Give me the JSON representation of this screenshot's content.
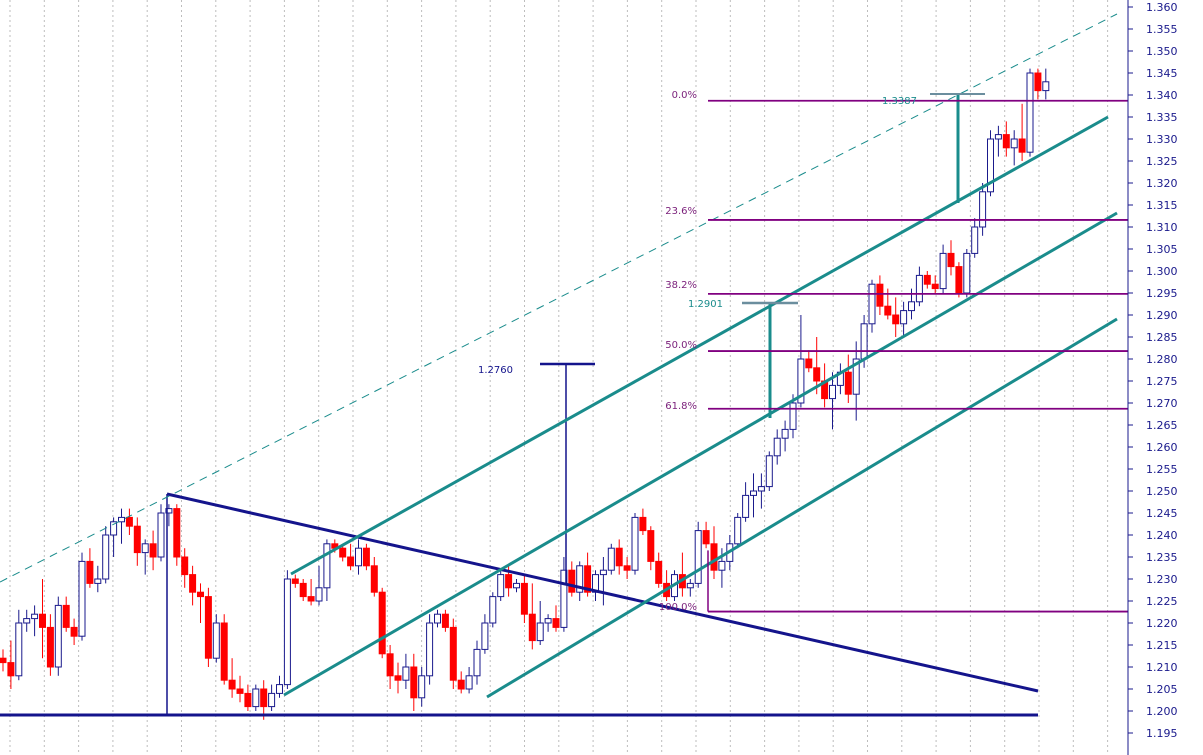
{
  "chart_data": {
    "type": "candlestick",
    "ylim": [
      1.195,
      1.36
    ],
    "y_ticks": [
      "1.195",
      "1.200",
      "1.205",
      "1.210",
      "1.215",
      "1.220",
      "1.225",
      "1.230",
      "1.235",
      "1.240",
      "1.245",
      "1.250",
      "1.255",
      "1.260",
      "1.265",
      "1.270",
      "1.275",
      "1.280",
      "1.285",
      "1.290",
      "1.295",
      "1.300",
      "1.305",
      "1.310",
      "1.315",
      "1.320",
      "1.325",
      "1.330",
      "1.335",
      "1.340",
      "1.345",
      "1.350",
      "1.355",
      "1.360"
    ],
    "grid": "vertical dotted",
    "colors": {
      "up": "#ffffff",
      "down": "#ff0000",
      "up_outline": "#1a1a8c",
      "fib": "#800080",
      "channel": "#1a8c8c",
      "trend": "#14148c",
      "tick": "#1a1a8c"
    },
    "candles": [
      [
        1.212,
        1.214,
        1.209,
        1.211
      ],
      [
        1.211,
        1.216,
        1.205,
        1.208
      ],
      [
        1.208,
        1.223,
        1.207,
        1.22
      ],
      [
        1.22,
        1.223,
        1.218,
        1.221
      ],
      [
        1.221,
        1.224,
        1.217,
        1.222
      ],
      [
        1.222,
        1.23,
        1.212,
        1.219
      ],
      [
        1.219,
        1.222,
        1.208,
        1.21
      ],
      [
        1.21,
        1.226,
        1.208,
        1.224
      ],
      [
        1.224,
        1.226,
        1.218,
        1.219
      ],
      [
        1.219,
        1.221,
        1.215,
        1.217
      ],
      [
        1.217,
        1.236,
        1.216,
        1.234
      ],
      [
        1.234,
        1.237,
        1.228,
        1.229
      ],
      [
        1.229,
        1.233,
        1.227,
        1.23
      ],
      [
        1.23,
        1.242,
        1.229,
        1.24
      ],
      [
        1.24,
        1.244,
        1.235,
        1.243
      ],
      [
        1.243,
        1.246,
        1.238,
        1.244
      ],
      [
        1.244,
        1.246,
        1.24,
        1.242
      ],
      [
        1.242,
        1.244,
        1.233,
        1.236
      ],
      [
        1.236,
        1.239,
        1.231,
        1.238
      ],
      [
        1.238,
        1.241,
        1.232,
        1.235
      ],
      [
        1.235,
        1.247,
        1.234,
        1.245
      ],
      [
        1.245,
        1.247,
        1.242,
        1.246
      ],
      [
        1.246,
        1.247,
        1.233,
        1.235
      ],
      [
        1.235,
        1.237,
        1.228,
        1.231
      ],
      [
        1.231,
        1.233,
        1.224,
        1.227
      ],
      [
        1.227,
        1.229,
        1.22,
        1.226
      ],
      [
        1.226,
        1.228,
        1.21,
        1.212
      ],
      [
        1.212,
        1.222,
        1.211,
        1.22
      ],
      [
        1.22,
        1.222,
        1.206,
        1.207
      ],
      [
        1.207,
        1.212,
        1.203,
        1.205
      ],
      [
        1.205,
        1.208,
        1.202,
        1.204
      ],
      [
        1.204,
        1.206,
        1.2,
        1.201
      ],
      [
        1.201,
        1.206,
        1.2,
        1.205
      ],
      [
        1.205,
        1.207,
        1.198,
        1.201
      ],
      [
        1.201,
        1.206,
        1.2,
        1.204
      ],
      [
        1.204,
        1.208,
        1.203,
        1.206
      ],
      [
        1.206,
        1.232,
        1.205,
        1.23
      ],
      [
        1.23,
        1.231,
        1.228,
        1.229
      ],
      [
        1.229,
        1.23,
        1.225,
        1.226
      ],
      [
        1.226,
        1.23,
        1.224,
        1.225
      ],
      [
        1.225,
        1.233,
        1.224,
        1.228
      ],
      [
        1.228,
        1.239,
        1.225,
        1.238
      ],
      [
        1.238,
        1.239,
        1.236,
        1.237
      ],
      [
        1.237,
        1.238,
        1.234,
        1.235
      ],
      [
        1.235,
        1.238,
        1.232,
        1.233
      ],
      [
        1.233,
        1.239,
        1.231,
        1.237
      ],
      [
        1.237,
        1.238,
        1.232,
        1.233
      ],
      [
        1.233,
        1.235,
        1.226,
        1.227
      ],
      [
        1.227,
        1.228,
        1.212,
        1.213
      ],
      [
        1.213,
        1.215,
        1.205,
        1.208
      ],
      [
        1.208,
        1.211,
        1.204,
        1.207
      ],
      [
        1.207,
        1.213,
        1.205,
        1.21
      ],
      [
        1.21,
        1.213,
        1.2,
        1.203
      ],
      [
        1.203,
        1.21,
        1.201,
        1.208
      ],
      [
        1.208,
        1.222,
        1.206,
        1.22
      ],
      [
        1.22,
        1.223,
        1.219,
        1.222
      ],
      [
        1.222,
        1.223,
        1.218,
        1.219
      ],
      [
        1.219,
        1.221,
        1.205,
        1.207
      ],
      [
        1.207,
        1.209,
        1.204,
        1.205
      ],
      [
        1.205,
        1.21,
        1.204,
        1.208
      ],
      [
        1.208,
        1.216,
        1.206,
        1.214
      ],
      [
        1.214,
        1.222,
        1.213,
        1.22
      ],
      [
        1.22,
        1.227,
        1.219,
        1.226
      ],
      [
        1.226,
        1.232,
        1.225,
        1.231
      ],
      [
        1.231,
        1.233,
        1.226,
        1.228
      ],
      [
        1.228,
        1.23,
        1.227,
        1.229
      ],
      [
        1.229,
        1.231,
        1.22,
        1.222
      ],
      [
        1.222,
        1.229,
        1.214,
        1.216
      ],
      [
        1.216,
        1.225,
        1.215,
        1.22
      ],
      [
        1.22,
        1.222,
        1.218,
        1.221
      ],
      [
        1.221,
        1.224,
        1.218,
        1.219
      ],
      [
        1.219,
        1.235,
        1.218,
        1.232
      ],
      [
        1.232,
        1.234,
        1.226,
        1.227
      ],
      [
        1.227,
        1.234,
        1.225,
        1.233
      ],
      [
        1.233,
        1.236,
        1.226,
        1.227
      ],
      [
        1.227,
        1.232,
        1.225,
        1.231
      ],
      [
        1.231,
        1.235,
        1.224,
        1.232
      ],
      [
        1.232,
        1.238,
        1.231,
        1.237
      ],
      [
        1.237,
        1.239,
        1.231,
        1.233
      ],
      [
        1.233,
        1.235,
        1.23,
        1.232
      ],
      [
        1.232,
        1.245,
        1.231,
        1.244
      ],
      [
        1.244,
        1.246,
        1.24,
        1.241
      ],
      [
        1.241,
        1.242,
        1.232,
        1.234
      ],
      [
        1.234,
        1.236,
        1.228,
        1.229
      ],
      [
        1.229,
        1.232,
        1.225,
        1.226
      ],
      [
        1.226,
        1.232,
        1.225,
        1.231
      ],
      [
        1.231,
        1.236,
        1.226,
        1.228
      ],
      [
        1.228,
        1.23,
        1.226,
        1.229
      ],
      [
        1.229,
        1.243,
        1.228,
        1.241
      ],
      [
        1.241,
        1.243,
        1.237,
        1.238
      ],
      [
        1.238,
        1.242,
        1.23,
        1.232
      ],
      [
        1.232,
        1.237,
        1.228,
        1.234
      ],
      [
        1.234,
        1.24,
        1.232,
        1.238
      ],
      [
        1.238,
        1.245,
        1.237,
        1.244
      ],
      [
        1.244,
        1.252,
        1.243,
        1.249
      ],
      [
        1.249,
        1.254,
        1.244,
        1.25
      ],
      [
        1.25,
        1.254,
        1.246,
        1.251
      ],
      [
        1.251,
        1.259,
        1.25,
        1.258
      ],
      [
        1.258,
        1.264,
        1.256,
        1.262
      ],
      [
        1.262,
        1.266,
        1.259,
        1.264
      ],
      [
        1.264,
        1.272,
        1.262,
        1.27
      ],
      [
        1.27,
        1.29,
        1.269,
        1.28
      ],
      [
        1.28,
        1.282,
        1.277,
        1.278
      ],
      [
        1.278,
        1.285,
        1.272,
        1.275
      ],
      [
        1.275,
        1.279,
        1.269,
        1.271
      ],
      [
        1.271,
        1.277,
        1.264,
        1.274
      ],
      [
        1.274,
        1.279,
        1.272,
        1.277
      ],
      [
        1.277,
        1.281,
        1.27,
        1.272
      ],
      [
        1.272,
        1.284,
        1.266,
        1.28
      ],
      [
        1.28,
        1.29,
        1.278,
        1.288
      ],
      [
        1.288,
        1.298,
        1.286,
        1.297
      ],
      [
        1.297,
        1.299,
        1.29,
        1.292
      ],
      [
        1.292,
        1.296,
        1.289,
        1.29
      ],
      [
        1.29,
        1.294,
        1.285,
        1.288
      ],
      [
        1.288,
        1.293,
        1.285,
        1.291
      ],
      [
        1.291,
        1.296,
        1.289,
        1.293
      ],
      [
        1.293,
        1.301,
        1.292,
        1.299
      ],
      [
        1.299,
        1.3,
        1.296,
        1.297
      ],
      [
        1.297,
        1.299,
        1.295,
        1.296
      ],
      [
        1.296,
        1.306,
        1.295,
        1.304
      ],
      [
        1.304,
        1.307,
        1.299,
        1.301
      ],
      [
        1.301,
        1.302,
        1.294,
        1.295
      ],
      [
        1.295,
        1.305,
        1.294,
        1.304
      ],
      [
        1.304,
        1.312,
        1.303,
        1.31
      ],
      [
        1.31,
        1.32,
        1.308,
        1.318
      ],
      [
        1.318,
        1.332,
        1.317,
        1.33
      ],
      [
        1.33,
        1.333,
        1.326,
        1.331
      ],
      [
        1.331,
        1.334,
        1.326,
        1.328
      ],
      [
        1.328,
        1.332,
        1.324,
        1.33
      ],
      [
        1.33,
        1.338,
        1.325,
        1.327
      ],
      [
        1.327,
        1.346,
        1.326,
        1.345
      ],
      [
        1.345,
        1.346,
        1.339,
        1.341
      ],
      [
        1.341,
        1.346,
        1.339,
        1.343
      ]
    ]
  },
  "annotations": {
    "fib_labels": [
      "0.0%",
      "23.6%",
      "38.2%",
      "50.0%",
      "61.8%",
      "100.0%"
    ],
    "fib_prices": [
      1.3387,
      1.3116,
      1.2948,
      1.2818,
      1.2687,
      1.2226
    ],
    "target1": "1.2760",
    "target2": "1.2901",
    "target3": "1.3387"
  }
}
